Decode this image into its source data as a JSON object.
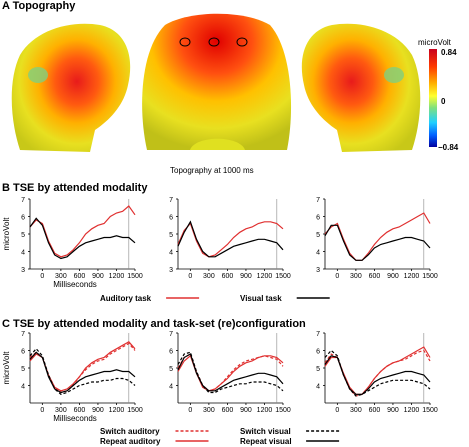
{
  "figure": {
    "panel_a": {
      "title": "A Topography",
      "caption": "Topography at 1000 ms",
      "colorbar": {
        "unit": "microVolt",
        "max_label": "0.84",
        "mid_label": "0",
        "min_label": "−0.84",
        "colors": [
          "#c8001e",
          "#ff3a00",
          "#ffb000",
          "#ffff30",
          "#7fe07f",
          "#20d0ff",
          "#0060ff",
          "#0000a0"
        ]
      }
    },
    "panel_b": {
      "title": "B TSE by attended modality",
      "legend": {
        "auditory": "Auditory task",
        "visual": "Visual task"
      }
    },
    "panel_c": {
      "title": "C TSE by attended modality and task-set (re)configuration",
      "legend": {
        "switch_auditory": "Switch auditory",
        "repeat_auditory": "Repeat auditory",
        "switch_visual": "Switch visual",
        "repeat_visual": "Repeat visual"
      }
    },
    "axis": {
      "ylabel": "microVolt",
      "xlabel": "Milliseconds"
    },
    "colors": {
      "auditory": "#e03030",
      "visual": "#000000"
    }
  },
  "chart_data": [
    {
      "type": "line",
      "panel": "B1",
      "ylabel": "microVolt",
      "xlabel": "Milliseconds",
      "x": [
        -200,
        -100,
        0,
        100,
        200,
        300,
        400,
        500,
        600,
        700,
        800,
        900,
        1000,
        1100,
        1200,
        1300,
        1400,
        1500
      ],
      "xticks": [
        0,
        300,
        600,
        900,
        1200,
        1500
      ],
      "yticks": [
        3,
        4,
        5,
        6,
        7
      ],
      "xlim": [
        -200,
        1500
      ],
      "ylim": [
        3,
        7
      ],
      "series": [
        {
          "name": "Auditory task",
          "values": [
            5.4,
            5.8,
            5.6,
            4.6,
            3.9,
            3.7,
            3.8,
            4.1,
            4.5,
            5.0,
            5.3,
            5.5,
            5.6,
            6.0,
            6.2,
            6.3,
            6.6,
            6.1
          ]
        },
        {
          "name": "Visual task",
          "values": [
            5.4,
            5.9,
            5.5,
            4.5,
            3.8,
            3.6,
            3.7,
            4.0,
            4.3,
            4.5,
            4.6,
            4.7,
            4.8,
            4.8,
            4.9,
            4.8,
            4.8,
            4.5
          ]
        }
      ]
    },
    {
      "type": "line",
      "panel": "B2",
      "x": [
        -200,
        -100,
        0,
        100,
        200,
        300,
        400,
        500,
        600,
        700,
        800,
        900,
        1000,
        1100,
        1200,
        1300,
        1400,
        1500
      ],
      "xticks": [
        0,
        300,
        600,
        900,
        1200,
        1500
      ],
      "yticks": [
        3,
        4,
        5,
        6,
        7
      ],
      "xlim": [
        -200,
        1500
      ],
      "ylim": [
        3,
        7
      ],
      "series": [
        {
          "name": "Auditory task",
          "values": [
            4.4,
            5.2,
            5.6,
            4.6,
            3.9,
            3.7,
            3.8,
            4.1,
            4.4,
            4.8,
            5.1,
            5.3,
            5.4,
            5.6,
            5.7,
            5.7,
            5.6,
            5.3
          ]
        },
        {
          "name": "Visual task",
          "values": [
            4.3,
            5.1,
            5.7,
            4.7,
            4.0,
            3.7,
            3.7,
            3.9,
            4.1,
            4.3,
            4.4,
            4.5,
            4.6,
            4.7,
            4.7,
            4.6,
            4.5,
            4.1
          ]
        }
      ]
    },
    {
      "type": "line",
      "panel": "B3",
      "x": [
        -200,
        -100,
        0,
        100,
        200,
        300,
        400,
        500,
        600,
        700,
        800,
        900,
        1000,
        1100,
        1200,
        1300,
        1400,
        1500
      ],
      "xticks": [
        0,
        300,
        600,
        900,
        1200,
        1500
      ],
      "yticks": [
        3,
        4,
        5,
        6,
        7
      ],
      "xlim": [
        -200,
        1500
      ],
      "ylim": [
        3,
        7
      ],
      "series": [
        {
          "name": "Auditory task",
          "values": [
            5.0,
            5.4,
            5.6,
            4.7,
            3.9,
            3.5,
            3.5,
            3.9,
            4.4,
            4.8,
            5.1,
            5.3,
            5.4,
            5.6,
            5.8,
            6.0,
            6.2,
            5.6
          ]
        },
        {
          "name": "Visual task",
          "values": [
            4.9,
            5.5,
            5.5,
            4.6,
            3.8,
            3.5,
            3.5,
            3.8,
            4.2,
            4.4,
            4.5,
            4.6,
            4.7,
            4.8,
            4.8,
            4.7,
            4.6,
            4.2
          ]
        }
      ]
    },
    {
      "type": "line",
      "panel": "C1",
      "ylabel": "microVolt",
      "xlabel": "Milliseconds",
      "x": [
        -200,
        -100,
        0,
        100,
        200,
        300,
        400,
        500,
        600,
        700,
        800,
        900,
        1000,
        1100,
        1200,
        1300,
        1400,
        1500
      ],
      "xticks": [
        0,
        300,
        600,
        900,
        1200,
        1500
      ],
      "yticks": [
        4,
        5,
        6,
        7
      ],
      "xlim": [
        -200,
        1500
      ],
      "ylim": [
        3,
        7
      ],
      "series": [
        {
          "name": "Switch auditory",
          "values": [
            5.6,
            5.9,
            5.6,
            4.6,
            3.9,
            3.6,
            3.7,
            4.0,
            4.5,
            4.9,
            5.2,
            5.4,
            5.5,
            5.8,
            6.0,
            6.2,
            6.4,
            6.0
          ]
        },
        {
          "name": "Repeat auditory",
          "values": [
            5.4,
            5.8,
            5.6,
            4.6,
            3.9,
            3.7,
            3.8,
            4.1,
            4.5,
            5.0,
            5.3,
            5.5,
            5.6,
            5.9,
            6.1,
            6.3,
            6.5,
            6.1
          ]
        },
        {
          "name": "Switch visual",
          "values": [
            5.7,
            6.1,
            5.7,
            4.6,
            3.8,
            3.5,
            3.6,
            3.8,
            4.0,
            4.1,
            4.2,
            4.2,
            4.3,
            4.3,
            4.4,
            4.4,
            4.3,
            4.0
          ]
        },
        {
          "name": "Repeat visual",
          "values": [
            5.5,
            5.9,
            5.6,
            4.5,
            3.8,
            3.6,
            3.7,
            4.0,
            4.3,
            4.5,
            4.6,
            4.7,
            4.8,
            4.8,
            4.9,
            4.8,
            4.8,
            4.5
          ]
        }
      ]
    },
    {
      "type": "line",
      "panel": "C2",
      "x": [
        -200,
        -100,
        0,
        100,
        200,
        300,
        400,
        500,
        600,
        700,
        800,
        900,
        1000,
        1100,
        1200,
        1300,
        1400,
        1500
      ],
      "xticks": [
        0,
        300,
        600,
        900,
        1200,
        1500
      ],
      "yticks": [
        4,
        5,
        6,
        7
      ],
      "xlim": [
        -200,
        1500
      ],
      "ylim": [
        3,
        7
      ],
      "series": [
        {
          "name": "Switch auditory",
          "values": [
            5.0,
            5.6,
            5.8,
            4.8,
            4.0,
            3.7,
            3.8,
            4.1,
            4.5,
            4.9,
            5.2,
            5.4,
            5.5,
            5.6,
            5.7,
            5.6,
            5.5,
            5.1
          ]
        },
        {
          "name": "Repeat auditory",
          "values": [
            4.8,
            5.4,
            5.7,
            4.7,
            3.9,
            3.7,
            3.8,
            4.1,
            4.4,
            4.8,
            5.1,
            5.3,
            5.4,
            5.6,
            5.7,
            5.7,
            5.6,
            5.3
          ]
        },
        {
          "name": "Switch visual",
          "values": [
            5.2,
            5.8,
            5.9,
            4.8,
            4.0,
            3.6,
            3.6,
            3.8,
            3.9,
            4.0,
            4.1,
            4.1,
            4.2,
            4.2,
            4.2,
            4.1,
            4.0,
            3.7
          ]
        },
        {
          "name": "Repeat visual",
          "values": [
            4.9,
            5.6,
            5.8,
            4.7,
            4.0,
            3.7,
            3.7,
            3.9,
            4.1,
            4.3,
            4.4,
            4.5,
            4.6,
            4.7,
            4.7,
            4.6,
            4.5,
            4.1
          ]
        }
      ]
    },
    {
      "type": "line",
      "panel": "C3",
      "x": [
        -200,
        -100,
        0,
        100,
        200,
        300,
        400,
        500,
        600,
        700,
        800,
        900,
        1000,
        1100,
        1200,
        1300,
        1400,
        1500
      ],
      "xticks": [
        0,
        300,
        600,
        900,
        1200,
        1500
      ],
      "yticks": [
        4,
        5,
        6,
        7
      ],
      "xlim": [
        -200,
        1500
      ],
      "ylim": [
        3,
        7
      ],
      "series": [
        {
          "name": "Switch auditory",
          "values": [
            5.3,
            5.8,
            5.6,
            4.6,
            3.8,
            3.4,
            3.5,
            3.9,
            4.4,
            4.8,
            5.1,
            5.3,
            5.4,
            5.5,
            5.7,
            5.9,
            6.0,
            5.4
          ]
        },
        {
          "name": "Repeat auditory",
          "values": [
            5.1,
            5.6,
            5.6,
            4.7,
            3.9,
            3.5,
            3.5,
            3.9,
            4.4,
            4.8,
            5.1,
            5.3,
            5.4,
            5.6,
            5.8,
            6.0,
            6.2,
            5.6
          ]
        },
        {
          "name": "Switch visual",
          "values": [
            5.6,
            6.0,
            5.7,
            4.6,
            3.8,
            3.4,
            3.5,
            3.7,
            3.9,
            4.1,
            4.2,
            4.3,
            4.3,
            4.3,
            4.3,
            4.2,
            4.1,
            3.8
          ]
        },
        {
          "name": "Repeat visual",
          "values": [
            5.2,
            5.7,
            5.6,
            4.6,
            3.8,
            3.5,
            3.5,
            3.8,
            4.2,
            4.4,
            4.5,
            4.6,
            4.7,
            4.8,
            4.8,
            4.7,
            4.6,
            4.2
          ]
        }
      ]
    }
  ]
}
